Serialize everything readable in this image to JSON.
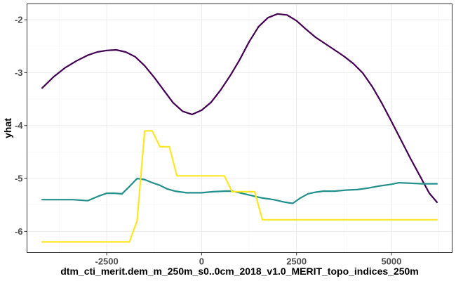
{
  "chart_data": {
    "type": "line",
    "xlabel": "dtm_cti_merit.dem_m_250m_s0..0cm_2018_v1.0_MERIT_topo_indices_250m",
    "ylabel": "yhat",
    "xlim": [
      -4600,
      6600
    ],
    "ylim": [
      -6.4,
      -1.7
    ],
    "x_ticks": [
      -2500,
      0,
      2500,
      5000
    ],
    "x_tick_labels": [
      "-2500",
      "0",
      "2500",
      "5000"
    ],
    "y_ticks": [
      -6,
      -5,
      -4,
      -3,
      -2
    ],
    "y_tick_labels": [
      "-6",
      "-5",
      "-4",
      "-3",
      "-2"
    ],
    "grid": true,
    "legend": "none",
    "series": [
      {
        "color": "#440154",
        "x": [
          -4200,
          -3900,
          -3600,
          -3300,
          -3000,
          -2750,
          -2500,
          -2250,
          -2000,
          -1750,
          -1500,
          -1250,
          -1000,
          -750,
          -500,
          -250,
          0,
          250,
          500,
          750,
          1000,
          1250,
          1500,
          1750,
          2000,
          2250,
          2500,
          2750,
          3000,
          3250,
          3500,
          3750,
          4000,
          4250,
          4500,
          4750,
          5000,
          5250,
          5500,
          5750,
          6000,
          6200
        ],
        "y": [
          -3.29,
          -3.08,
          -2.91,
          -2.78,
          -2.67,
          -2.61,
          -2.58,
          -2.57,
          -2.61,
          -2.7,
          -2.87,
          -3.09,
          -3.33,
          -3.57,
          -3.73,
          -3.79,
          -3.71,
          -3.56,
          -3.33,
          -3.06,
          -2.76,
          -2.42,
          -2.13,
          -1.96,
          -1.89,
          -1.91,
          -2.02,
          -2.18,
          -2.33,
          -2.45,
          -2.57,
          -2.69,
          -2.83,
          -3.01,
          -3.27,
          -3.58,
          -3.92,
          -4.27,
          -4.62,
          -4.95,
          -5.28,
          -5.45
        ]
      },
      {
        "color": "#21908C",
        "x": [
          -4200,
          -3800,
          -3400,
          -3000,
          -2900,
          -2700,
          -2500,
          -2300,
          -2100,
          -1900,
          -1700,
          -1500,
          -1300,
          -1100,
          -900,
          -700,
          -400,
          0,
          300,
          600,
          800,
          1000,
          1300,
          1600,
          1900,
          2200,
          2400,
          2600,
          2800,
          3000,
          3200,
          3500,
          3800,
          4100,
          4400,
          4700,
          5000,
          5200,
          5500,
          5800,
          6200
        ],
        "y": [
          -5.4,
          -5.4,
          -5.4,
          -5.42,
          -5.39,
          -5.33,
          -5.28,
          -5.28,
          -5.29,
          -5.15,
          -5.0,
          -5.02,
          -5.08,
          -5.13,
          -5.2,
          -5.24,
          -5.27,
          -5.27,
          -5.25,
          -5.24,
          -5.24,
          -5.27,
          -5.32,
          -5.37,
          -5.4,
          -5.45,
          -5.47,
          -5.37,
          -5.29,
          -5.26,
          -5.24,
          -5.24,
          -5.22,
          -5.21,
          -5.18,
          -5.14,
          -5.11,
          -5.08,
          -5.09,
          -5.1,
          -5.1
        ]
      },
      {
        "color": "#FDE725",
        "x": [
          -4200,
          -1900,
          -1700,
          -1500,
          -1300,
          -1100,
          -850,
          -650,
          0,
          600,
          800,
          1400,
          1600,
          6200
        ],
        "y": [
          -6.2,
          -6.2,
          -5.8,
          -4.1,
          -4.1,
          -4.4,
          -4.4,
          -4.95,
          -4.95,
          -4.95,
          -5.25,
          -5.25,
          -5.78,
          -5.78
        ]
      }
    ]
  }
}
